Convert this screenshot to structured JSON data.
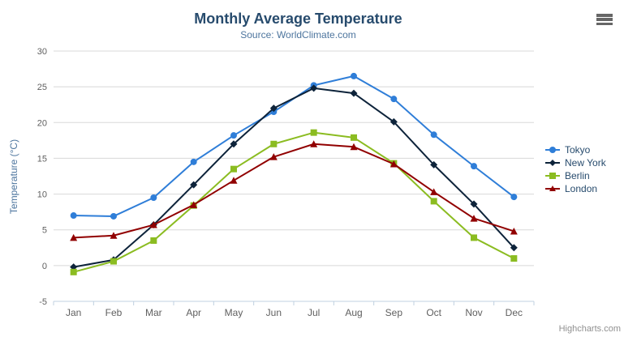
{
  "header": {
    "context_menu_icon": "hamburger-menu-icon"
  },
  "chart_data": {
    "type": "line",
    "title": "Monthly Average Temperature",
    "subtitle": "Source: WorldClimate.com",
    "categories": [
      "Jan",
      "Feb",
      "Mar",
      "Apr",
      "May",
      "Jun",
      "Jul",
      "Aug",
      "Sep",
      "Oct",
      "Nov",
      "Dec"
    ],
    "xlabel": "",
    "ylabel": "Temperature (°C)",
    "ylim": [
      -5,
      30
    ],
    "yticks": [
      -5,
      0,
      5,
      10,
      15,
      20,
      25,
      30
    ],
    "grid": true,
    "legend_position": "right",
    "series": [
      {
        "name": "Tokyo",
        "color": "#2f7ed8",
        "marker": "circle",
        "values": [
          7.0,
          6.9,
          9.5,
          14.5,
          18.2,
          21.5,
          25.2,
          26.5,
          23.3,
          18.3,
          13.9,
          9.6
        ]
      },
      {
        "name": "New York",
        "color": "#0d233a",
        "marker": "diamond",
        "values": [
          -0.2,
          0.8,
          5.7,
          11.3,
          17.0,
          22.0,
          24.8,
          24.1,
          20.1,
          14.1,
          8.6,
          2.5
        ]
      },
      {
        "name": "Berlin",
        "color": "#8bbc21",
        "marker": "square",
        "values": [
          -0.9,
          0.6,
          3.5,
          8.4,
          13.5,
          17.0,
          18.6,
          17.9,
          14.3,
          9.0,
          3.9,
          1.0
        ]
      },
      {
        "name": "London",
        "color": "#910000",
        "marker": "triangle",
        "values": [
          3.9,
          4.2,
          5.7,
          8.5,
          11.9,
          15.2,
          17.0,
          16.6,
          14.2,
          10.3,
          6.6,
          4.8
        ]
      }
    ]
  },
  "footer": {
    "credits": "Highcharts.com"
  },
  "colors": {
    "title": "#274b6d",
    "subtitle": "#4d759e",
    "axis_labels": "#606060",
    "grid_line": "#d8d8d8",
    "axis_line": "#c0d0e0",
    "legend_text": "#274b6d",
    "credits": "#909090",
    "menu_icon": "#666666"
  }
}
